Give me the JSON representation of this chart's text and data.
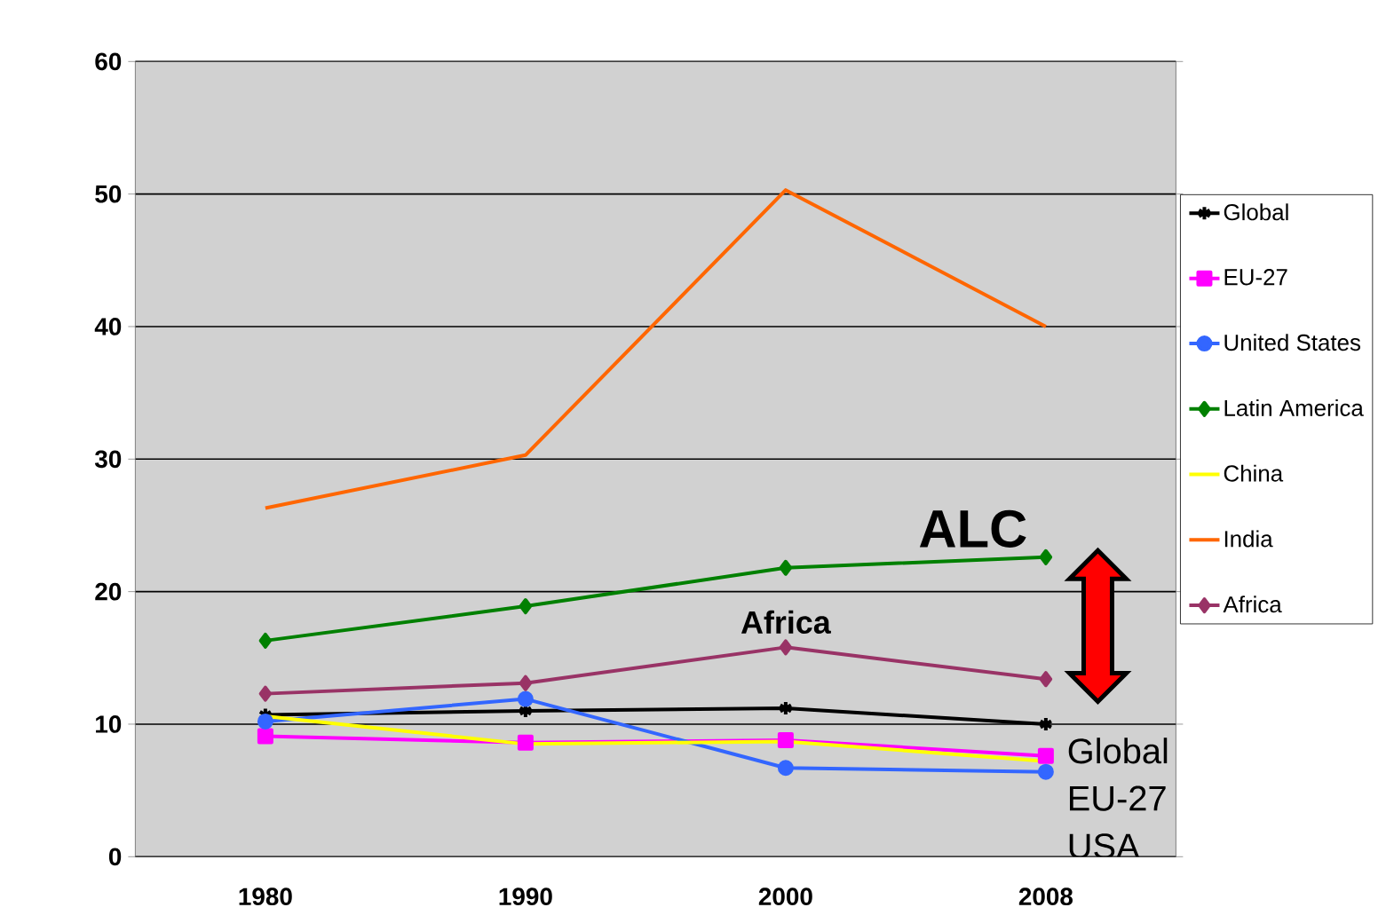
{
  "chart_data": {
    "type": "line",
    "categories": [
      "1980",
      "1990",
      "2000",
      "2008"
    ],
    "series": [
      {
        "name": "Global",
        "color": "#000000",
        "marker": "cross",
        "values": [
          10.7,
          11.0,
          11.2,
          10.0
        ]
      },
      {
        "name": "EU-27",
        "color": "#ff00ff",
        "marker": "square",
        "values": [
          9.1,
          8.6,
          8.8,
          7.6
        ]
      },
      {
        "name": "United States",
        "color": "#3366ff",
        "marker": "circle",
        "values": [
          10.2,
          11.9,
          6.7,
          6.4
        ]
      },
      {
        "name": "Latin America",
        "color": "#008000",
        "marker": "diamond",
        "values": [
          16.3,
          18.9,
          21.8,
          22.6
        ]
      },
      {
        "name": "China",
        "color": "#ffff00",
        "marker": "none",
        "values": [
          10.6,
          8.5,
          8.7,
          7.2
        ]
      },
      {
        "name": "India",
        "color": "#ff6600",
        "marker": "none",
        "values": [
          26.3,
          30.3,
          50.3,
          40.0
        ]
      },
      {
        "name": "Africa",
        "color": "#993366",
        "marker": "diamond",
        "values": [
          12.3,
          13.1,
          15.8,
          13.4
        ]
      }
    ],
    "ylim": [
      0,
      60
    ],
    "yticks": [
      0,
      10,
      20,
      30,
      40,
      50,
      60
    ],
    "grid": "y",
    "legend": "right",
    "annotations": [
      "ALC",
      "Africa",
      "Global",
      "EU-27",
      "USA"
    ]
  }
}
